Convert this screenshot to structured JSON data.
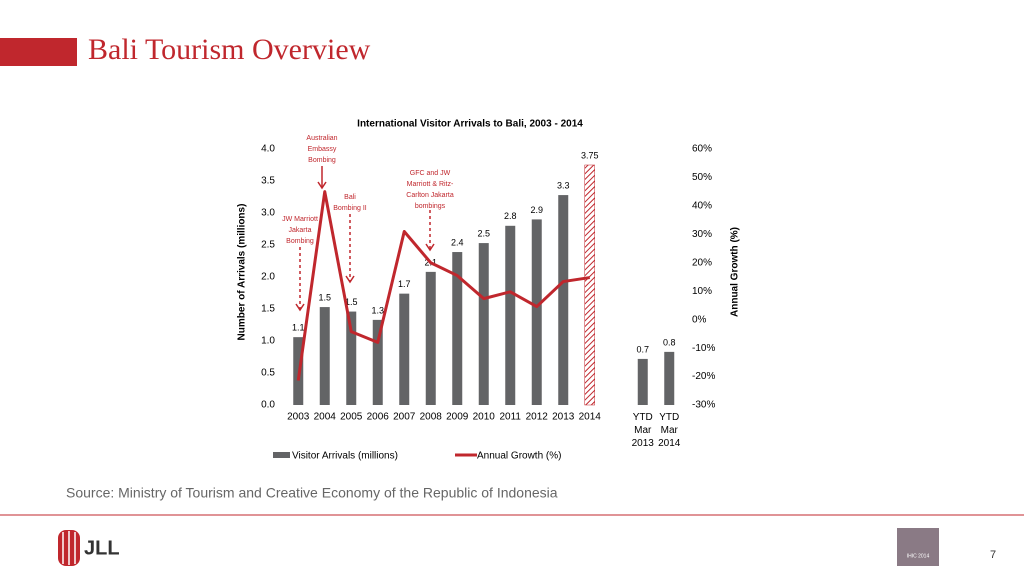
{
  "slide_title": "Bali Tourism Overview",
  "source": "Source: Ministry of Tourism and Creative Economy of the Republic of Indonesia",
  "logo": "JLL",
  "badge": "IHIC 2014",
  "page_number": "7",
  "chart_data": {
    "type": "bar",
    "title": "International Visitor Arrivals to Bali, 2003 -  2014",
    "ylabel": "Number of Arrivals (millions)",
    "y2label": "Annual Growth (%)",
    "categories": [
      "2003",
      "2004",
      "2005",
      "2006",
      "2007",
      "2008",
      "2009",
      "2010",
      "2011",
      "2012",
      "2013",
      "2014",
      null,
      "YTD Mar 2013",
      "YTD Mar 2014"
    ],
    "series": [
      {
        "name": "Visitor Arrivals (millions)",
        "type": "bar",
        "color": "#636466",
        "values": [
          1.06,
          1.53,
          1.46,
          1.33,
          1.74,
          2.08,
          2.39,
          2.53,
          2.8,
          2.9,
          3.28,
          3.75,
          null,
          0.72,
          0.83
        ],
        "value_labels": [
          "1.1",
          "1.5",
          "1.5",
          "1.3",
          "1.7",
          "2.1",
          "2.4",
          "2.5",
          "2.8",
          "2.9",
          "3.3",
          "3.75",
          null,
          "0.7",
          "0.8"
        ],
        "hatch": [
          false,
          false,
          false,
          false,
          false,
          false,
          false,
          false,
          false,
          false,
          false,
          true,
          false,
          false,
          false
        ]
      },
      {
        "name": "Annual Growth (%)",
        "type": "line",
        "axis": "y2",
        "color": "#c0272d",
        "values": [
          -21.4,
          45,
          -4.2,
          -8,
          31,
          20,
          15.5,
          7.4,
          9.8,
          4.6,
          13.4,
          14.8,
          null,
          null,
          null
        ]
      }
    ],
    "ylim": [
      0,
      4
    ],
    "yticks": [
      {
        "value": 0,
        "label": "0.0"
      },
      {
        "value": 0.5,
        "label": "0.5"
      },
      {
        "value": 1,
        "label": "1.0"
      },
      {
        "value": 1.5,
        "label": "1.5"
      },
      {
        "value": 2,
        "label": "2.0"
      },
      {
        "value": 2.5,
        "label": "2.5"
      },
      {
        "value": 3,
        "label": "3.0"
      },
      {
        "value": 3.5,
        "label": "3.5"
      },
      {
        "value": 4,
        "label": "4.0"
      }
    ],
    "y2lim": [
      -30,
      60
    ],
    "y2ticks": [
      {
        "value": -30,
        "label": "-30%"
      },
      {
        "value": -20,
        "label": "-20%"
      },
      {
        "value": -10,
        "label": "-10%"
      },
      {
        "value": 0,
        "label": "0%"
      },
      {
        "value": 10,
        "label": "10%"
      },
      {
        "value": 20,
        "label": "20%"
      },
      {
        "value": 30,
        "label": "30%"
      },
      {
        "value": 40,
        "label": "40%"
      },
      {
        "value": 50,
        "label": "50%"
      },
      {
        "value": 60,
        "label": "60%"
      }
    ],
    "annotations": [
      {
        "lines": [
          "Australian",
          "Embassy",
          "Bombing"
        ]
      },
      {
        "lines": [
          "Bali",
          "Bombing II"
        ]
      },
      {
        "lines": [
          "JW Marriott",
          "Jakarta",
          "Bombing"
        ]
      },
      {
        "lines": [
          "GFC and JW",
          "Marriott & Ritz-",
          "Carlton Jakarta",
          "bombings"
        ]
      }
    ],
    "legend": "bottom"
  }
}
